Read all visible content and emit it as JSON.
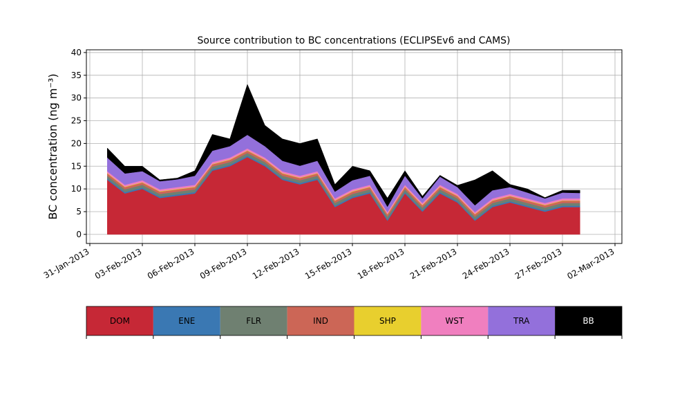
{
  "chart_data": {
    "type": "stacked_area",
    "title": "Source contribution to BC concentrations (ECLIPSEv6 and CAMS)",
    "y_label": "BC concentration (ng m⁻³)",
    "x": [
      "2013-02-01",
      "2013-02-02",
      "2013-02-03",
      "2013-02-04",
      "2013-02-05",
      "2013-02-06",
      "2013-02-07",
      "2013-02-08",
      "2013-02-09",
      "2013-02-10",
      "2013-02-11",
      "2013-02-12",
      "2013-02-13",
      "2013-02-14",
      "2013-02-15",
      "2013-02-16",
      "2013-02-17",
      "2013-02-18",
      "2013-02-19",
      "2013-02-20",
      "2013-02-21",
      "2013-02-22",
      "2013-02-23",
      "2013-02-24",
      "2013-02-25",
      "2013-02-26",
      "2013-02-27",
      "2013-02-28"
    ],
    "series": [
      {
        "name": "DOM",
        "color": "#c62836",
        "values": [
          12,
          9,
          10,
          8,
          8.5,
          9,
          14,
          15,
          17,
          15,
          12,
          11,
          12,
          6,
          8,
          9,
          3,
          9,
          5,
          9,
          7,
          3,
          6,
          7,
          6,
          5,
          6,
          6
        ]
      },
      {
        "name": "ENE",
        "color": "#3a78b3",
        "values": [
          0.3,
          0.3,
          0.3,
          0.3,
          0.3,
          0.3,
          0.3,
          0.3,
          0.3,
          0.3,
          0.3,
          0.3,
          0.3,
          0.3,
          0.3,
          0.3,
          0.3,
          0.3,
          0.3,
          0.3,
          0.3,
          0.3,
          0.3,
          0.3,
          0.3,
          0.3,
          0.3,
          0.3
        ]
      },
      {
        "name": "FLR",
        "color": "#6f8071",
        "values": [
          0.6,
          0.6,
          0.6,
          0.6,
          0.6,
          0.6,
          0.6,
          0.6,
          0.6,
          0.6,
          0.6,
          0.6,
          0.6,
          0.6,
          0.6,
          0.6,
          0.6,
          0.6,
          0.6,
          0.6,
          0.6,
          0.6,
          0.6,
          0.6,
          0.6,
          0.6,
          0.6,
          0.6
        ]
      },
      {
        "name": "IND",
        "color": "#cc6656",
        "values": [
          0.5,
          0.5,
          0.5,
          0.5,
          0.5,
          0.5,
          0.5,
          0.5,
          0.5,
          0.5,
          0.5,
          0.5,
          0.5,
          0.5,
          0.5,
          0.5,
          0.5,
          0.5,
          0.5,
          0.5,
          0.5,
          0.5,
          0.5,
          0.5,
          0.5,
          0.5,
          0.5,
          0.5
        ]
      },
      {
        "name": "SHP",
        "color": "#e8cf2e",
        "values": [
          0.1,
          0.1,
          0.1,
          0.1,
          0.1,
          0.1,
          0.1,
          0.1,
          0.1,
          0.1,
          0.1,
          0.1,
          0.1,
          0.1,
          0.1,
          0.1,
          0.1,
          0.1,
          0.1,
          0.1,
          0.1,
          0.1,
          0.1,
          0.1,
          0.1,
          0.1,
          0.1,
          0.1
        ]
      },
      {
        "name": "WST",
        "color": "#f07fbf",
        "values": [
          0.4,
          0.4,
          0.4,
          0.4,
          0.4,
          0.4,
          0.4,
          0.4,
          0.4,
          0.4,
          0.4,
          0.4,
          0.4,
          0.4,
          0.4,
          0.4,
          0.4,
          0.4,
          0.4,
          0.4,
          0.4,
          0.4,
          0.4,
          0.4,
          0.4,
          0.4,
          0.4,
          0.4
        ]
      },
      {
        "name": "TRA",
        "color": "#9370db",
        "values": [
          3,
          2.5,
          2,
          1.8,
          1.7,
          2,
          2.5,
          2.5,
          3,
          2.5,
          2.3,
          2.2,
          2.3,
          1.5,
          2,
          2,
          1.2,
          2,
          1,
          1.8,
          1.5,
          1.5,
          1.8,
          1.5,
          1.3,
          1,
          1.3,
          1.2
        ]
      },
      {
        "name": "BB",
        "color": "#000000",
        "values": [
          2.1,
          1.6,
          1.1,
          0.3,
          0.3,
          1.1,
          3.6,
          1.6,
          11.1,
          4.6,
          4.8,
          4.9,
          4.8,
          1.6,
          3.1,
          1.1,
          1.9,
          1.1,
          0.5,
          0.3,
          0.4,
          5.6,
          4.3,
          0.6,
          0.8,
          0.2,
          0.5,
          0.6
        ]
      }
    ],
    "xlim": [
      "2013-01-31",
      "2013-03-02"
    ],
    "xticks": [
      {
        "value": "2013-01-31",
        "label": "31-Jan-2013"
      },
      {
        "value": "2013-02-03",
        "label": "03-Feb-2013"
      },
      {
        "value": "2013-02-06",
        "label": "06-Feb-2013"
      },
      {
        "value": "2013-02-09",
        "label": "09-Feb-2013"
      },
      {
        "value": "2013-02-12",
        "label": "12-Feb-2013"
      },
      {
        "value": "2013-02-15",
        "label": "15-Feb-2013"
      },
      {
        "value": "2013-02-18",
        "label": "18-Feb-2013"
      },
      {
        "value": "2013-02-21",
        "label": "21-Feb-2013"
      },
      {
        "value": "2013-02-24",
        "label": "24-Feb-2013"
      },
      {
        "value": "2013-02-27",
        "label": "27-Feb-2013"
      },
      {
        "value": "2013-03-02",
        "label": "02-Mar-2013"
      }
    ],
    "ylim": [
      -2,
      40.6
    ],
    "yticks": [
      0,
      5,
      10,
      15,
      20,
      25,
      30,
      35,
      40
    ],
    "grid": true
  }
}
